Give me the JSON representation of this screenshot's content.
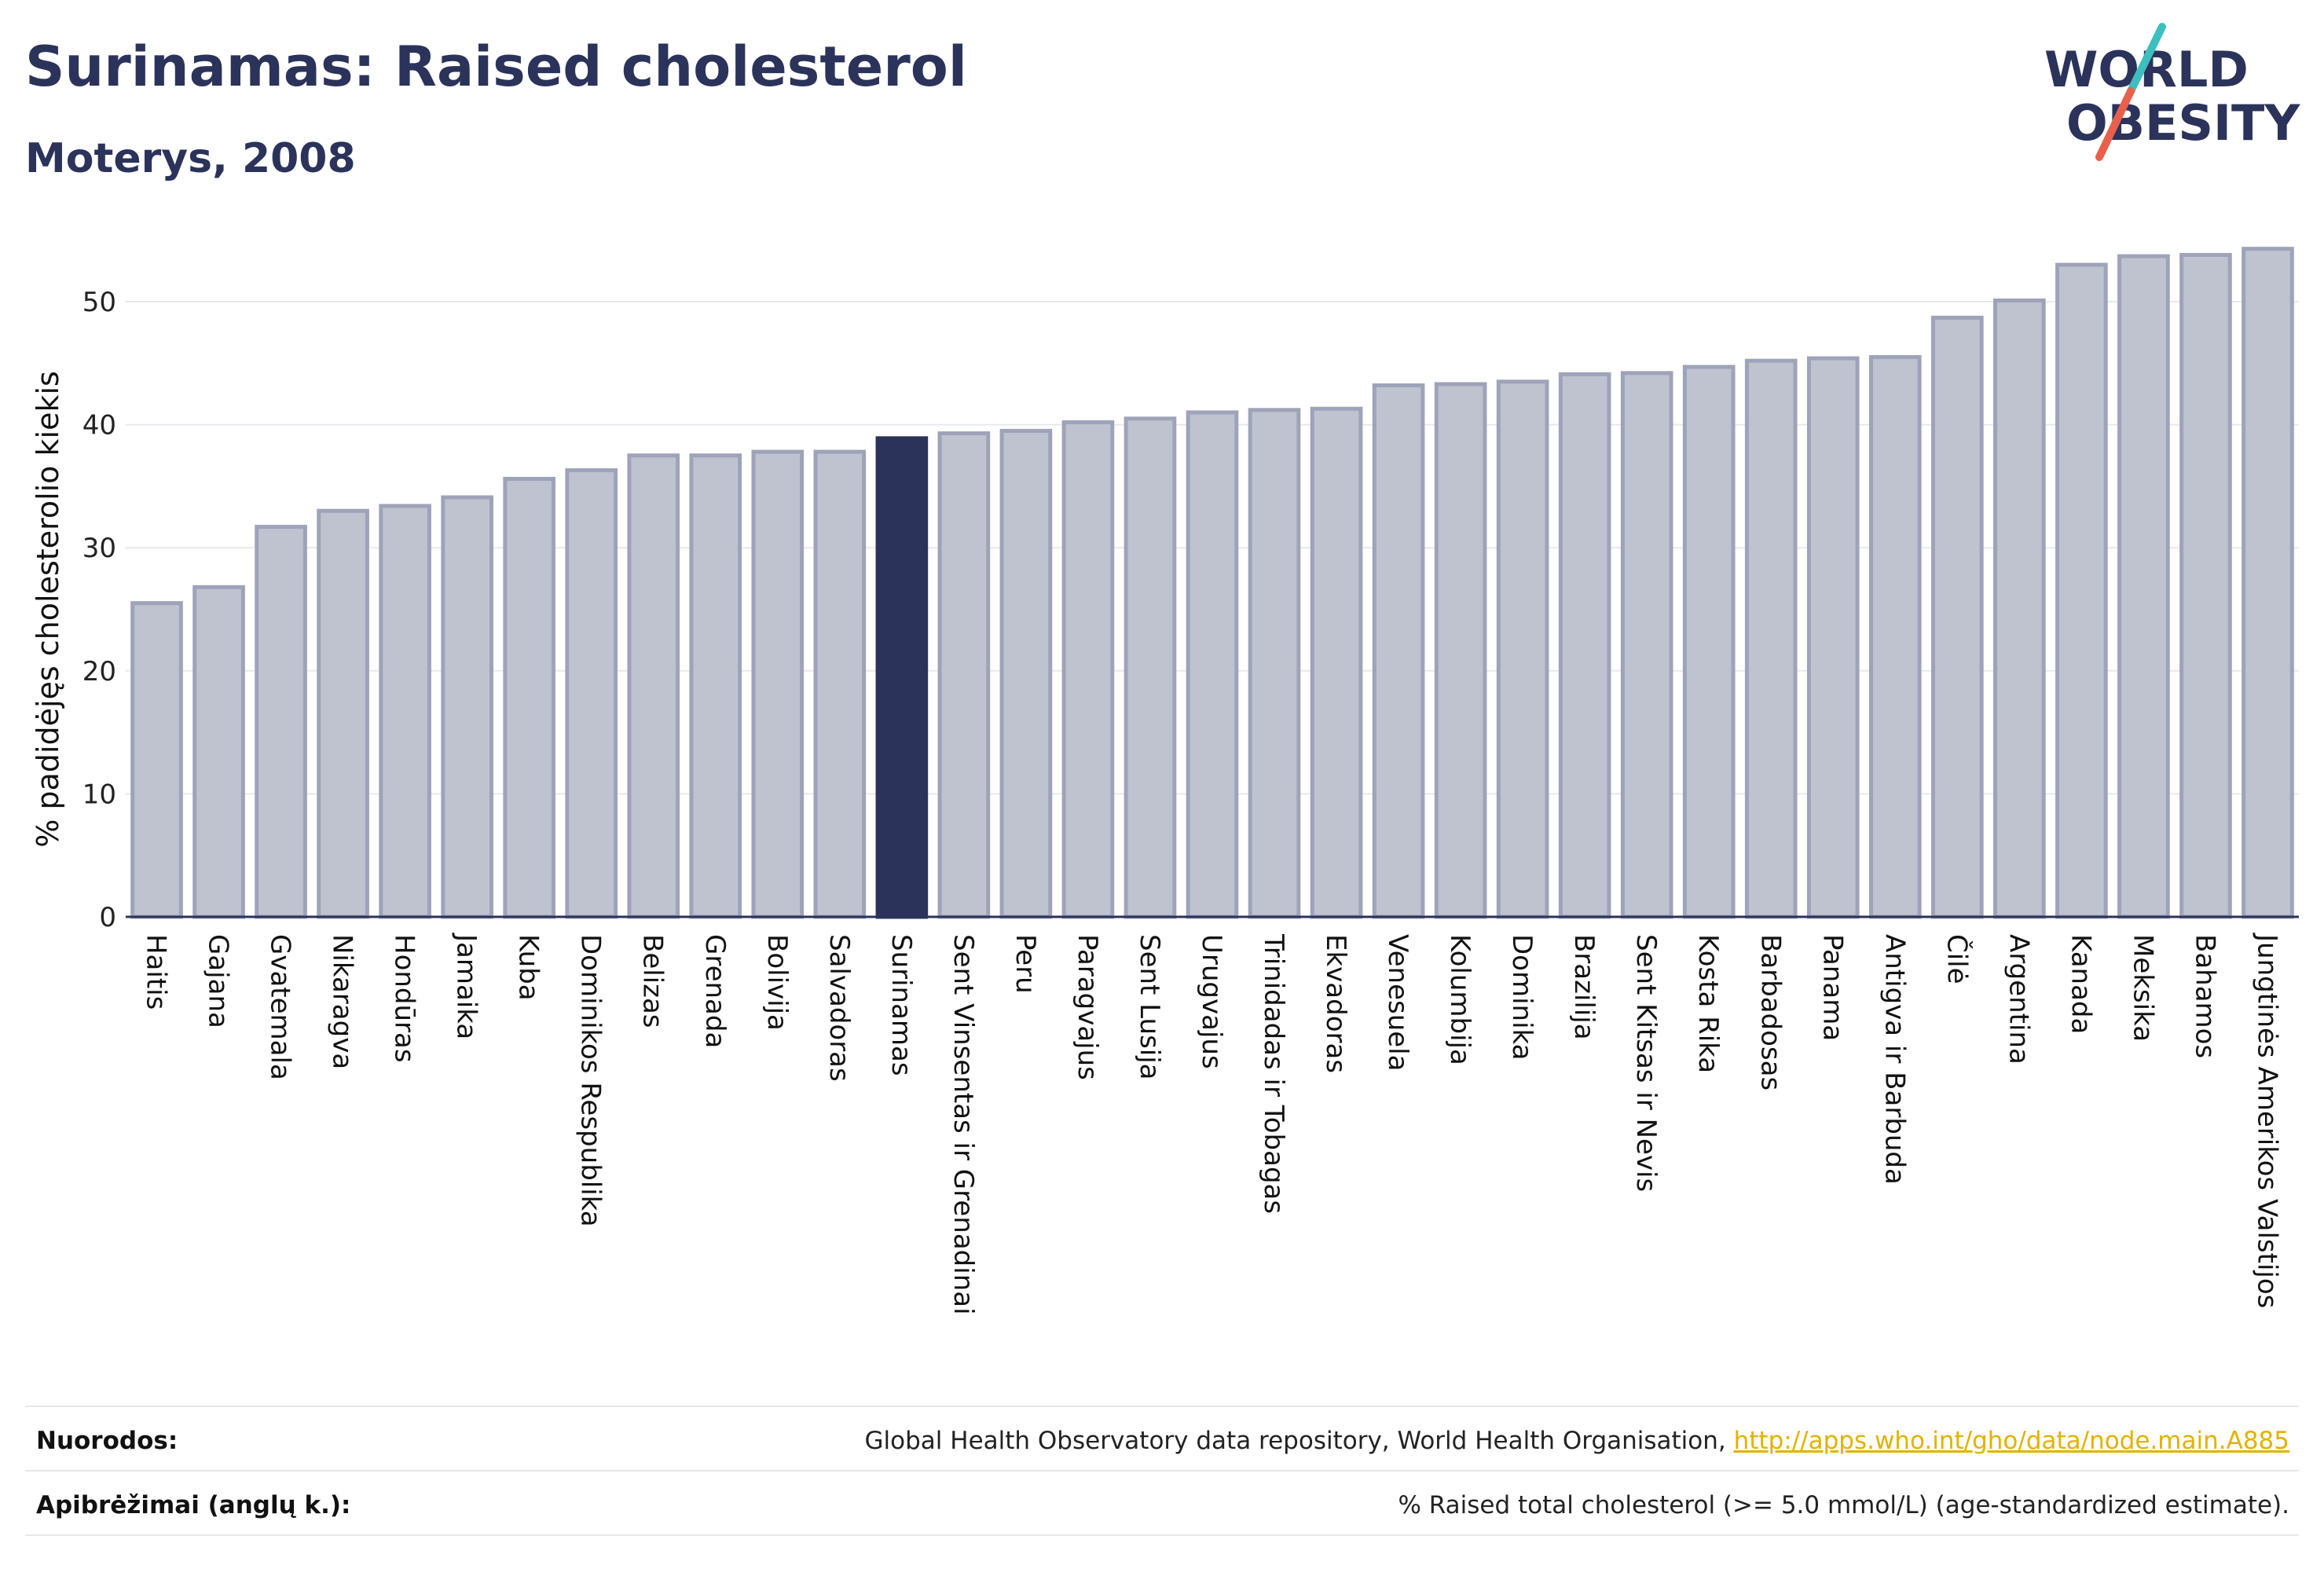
{
  "title": "Surinamas: Raised cholesterol",
  "subtitle": "Moterys, 2008",
  "logo": {
    "line1": "WORLD",
    "line2": "OBESITY",
    "colors": {
      "text": "#2b335b",
      "slash_top": "#3dbfbf",
      "slash_bottom": "#e8604c"
    }
  },
  "colors": {
    "bar": "#bfc2cf",
    "bar_stroke": "#9ea3b9",
    "highlight": "#2b335b",
    "grid": "#e8e9ee",
    "axis": "#2b335b"
  },
  "chart_data": {
    "type": "bar",
    "ylabel": "% padidėjęs cholesterolio kiekis",
    "xlabel": "",
    "ylim": [
      0,
      55
    ],
    "yticks": [
      0,
      10,
      20,
      30,
      40,
      50
    ],
    "grid": true,
    "highlight": "Surinamas",
    "categories": [
      "Haitis",
      "Gajana",
      "Gvatemala",
      "Nikaragva",
      "Hondūras",
      "Jamaika",
      "Kuba",
      "Dominikos Respublika",
      "Belizas",
      "Grenada",
      "Bolivija",
      "Salvadoras",
      "Surinamas",
      "Sent Vinsentas ir Grenadinai",
      "Peru",
      "Paragvajus",
      "Sent Lusija",
      "Urugvajus",
      "Trinidadas ir Tobagas",
      "Ekvadoras",
      "Venesuela",
      "Kolumbija",
      "Dominika",
      "Brazilija",
      "Sent Kitsas ir Nevis",
      "Kosta Rika",
      "Barbadosas",
      "Panama",
      "Antigva ir Barbuda",
      "Čilė",
      "Argentina",
      "Kanada",
      "Meksika",
      "Bahamos",
      "Jungtinės Amerikos Valstijos"
    ],
    "values": [
      25.5,
      26.8,
      31.7,
      33.0,
      33.4,
      34.1,
      35.6,
      36.3,
      37.5,
      37.5,
      37.8,
      37.8,
      38.9,
      39.3,
      39.5,
      40.2,
      40.5,
      41.0,
      41.2,
      41.3,
      43.2,
      43.3,
      43.5,
      44.1,
      44.2,
      44.7,
      45.2,
      45.4,
      45.5,
      48.7,
      50.1,
      53.0,
      53.7,
      53.8,
      54.3
    ]
  },
  "footer": {
    "sources_label": "Nuorodos:",
    "sources_text": "Global Health Observatory data repository, World Health Organisation,",
    "sources_link": "http://apps.who.int/gho/data/node.main.A885",
    "definitions_label": "Apibrėžimai (anglų k.):",
    "definitions_text": "% Raised total cholesterol (>= 5.0 mmol/L) (age-standardized estimate)."
  }
}
